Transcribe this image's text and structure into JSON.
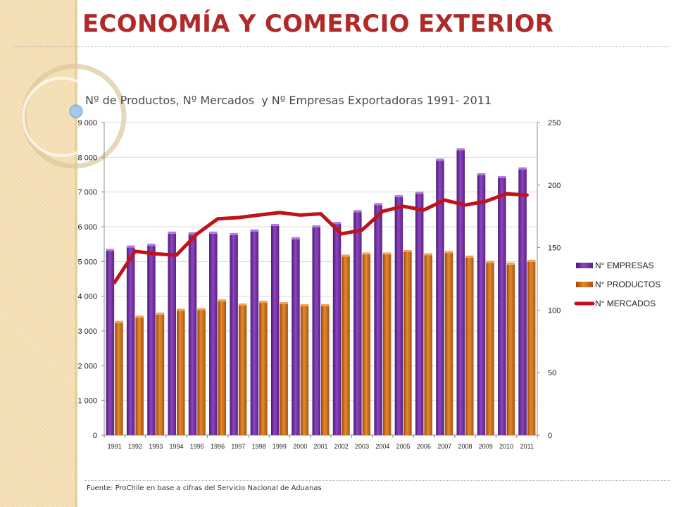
{
  "slide": {
    "title": "ECONOMÍA Y COMERCIO EXTERIOR",
    "source": "Fuente: ProChile en base a cifras del Servicio Nacional de Aduanas"
  },
  "colors": {
    "title": "#b02a2a",
    "empresas": "#7a35a8",
    "productos": "#d4731c",
    "mercados": "#c0121b",
    "background_band": "#f3ddb0"
  },
  "chart_data": {
    "type": "bar",
    "title": "Nº de Productos, Nº Mercados  y Nº Empresas Exportadoras 1991- 2011",
    "categories": [
      "1991",
      "1992",
      "1993",
      "1994",
      "1995",
      "1996",
      "1997",
      "1998",
      "1999",
      "2000",
      "2001",
      "2002",
      "2003",
      "2004",
      "2005",
      "2006",
      "2007",
      "2008",
      "2009",
      "2010",
      "2011"
    ],
    "series": [
      {
        "name": "N° EMPRESAS",
        "type": "bar",
        "axis": "left",
        "color": "#7a35a8",
        "values": [
          5300,
          5400,
          5450,
          5800,
          5780,
          5800,
          5760,
          5860,
          6020,
          5640,
          5980,
          6080,
          6420,
          6620,
          6850,
          6950,
          7900,
          8200,
          7480,
          7400,
          7650
        ]
      },
      {
        "name": "N° PRODUCTOS",
        "type": "bar",
        "axis": "left",
        "color": "#d4731c",
        "values": [
          3230,
          3380,
          3470,
          3580,
          3600,
          3850,
          3730,
          3810,
          3770,
          3710,
          3710,
          5140,
          5200,
          5200,
          5270,
          5180,
          5240,
          5110,
          4960,
          4910,
          4990
        ]
      },
      {
        "name": "N° MERCADOS",
        "type": "line",
        "axis": "right",
        "color": "#c0121b",
        "values": [
          122,
          147,
          145,
          144,
          161,
          173,
          174,
          176,
          178,
          176,
          177,
          161,
          164,
          179,
          183,
          180,
          188,
          184,
          187,
          193,
          192
        ]
      }
    ],
    "y_left": {
      "min": 0,
      "max": 9000,
      "ticks": [
        0,
        1000,
        2000,
        3000,
        4000,
        5000,
        6000,
        7000,
        8000,
        9000
      ],
      "tick_labels": [
        "0",
        "1 000",
        "2 000",
        "3 000",
        "4 000",
        "5 000",
        "6 000",
        "7 000",
        "8 000",
        "9 000"
      ]
    },
    "y_right": {
      "min": 0,
      "max": 250,
      "ticks": [
        0,
        50,
        100,
        150,
        200,
        250
      ],
      "tick_labels": [
        "0",
        "50",
        "100",
        "150",
        "200",
        "250"
      ]
    },
    "grid": true,
    "legend": "right"
  }
}
